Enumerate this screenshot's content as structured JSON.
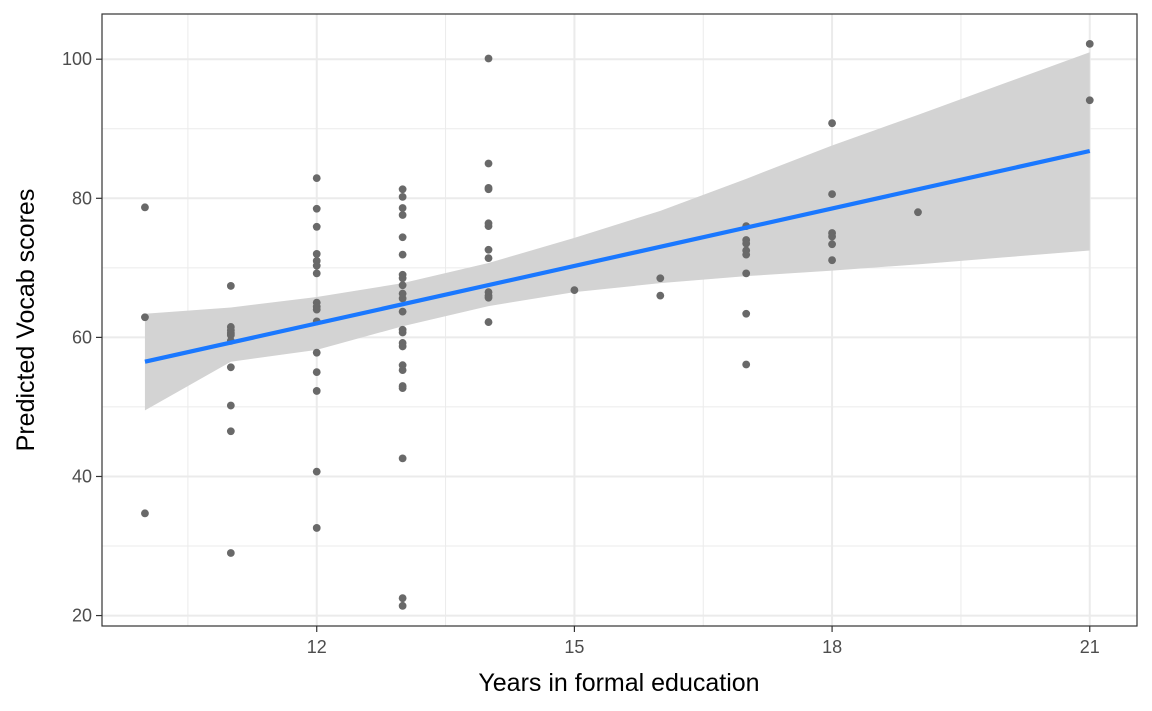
{
  "chart_data": {
    "type": "scatter",
    "title": "",
    "xlabel": "Years in formal education",
    "ylabel": "Predicted Vocab scores",
    "xlim": [
      9.5,
      21.55
    ],
    "ylim": [
      18.5,
      106.5
    ],
    "x_ticks": [
      12,
      15,
      18,
      21
    ],
    "x_tick_labels": [
      "12",
      "15",
      "18",
      "21"
    ],
    "x_minor_ticks": [
      10.5,
      13.5,
      16.5,
      19.5
    ],
    "y_ticks": [
      20,
      40,
      60,
      80,
      100
    ],
    "y_tick_labels": [
      "20",
      "40",
      "60",
      "80",
      "100"
    ],
    "y_minor_ticks": [
      30,
      50,
      70,
      90
    ],
    "grid": true,
    "legend": "none",
    "colors": {
      "points": "#696969",
      "fit_line": "#1a78ff",
      "confidence_band": "#d3d3d3",
      "grid": "#ebebeb",
      "panel_border": "#333333"
    },
    "series": [
      {
        "type": "scatter",
        "points": [
          [
            10,
            78.7
          ],
          [
            10,
            62.9
          ],
          [
            10,
            34.7
          ],
          [
            11,
            67.4
          ],
          [
            11,
            61.5
          ],
          [
            11,
            61.0
          ],
          [
            11,
            60.6
          ],
          [
            11,
            60.3
          ],
          [
            11,
            59.5
          ],
          [
            11,
            55.7
          ],
          [
            11,
            50.2
          ],
          [
            11,
            46.5
          ],
          [
            11,
            29.0
          ],
          [
            12,
            82.9
          ],
          [
            12,
            78.5
          ],
          [
            12,
            75.9
          ],
          [
            12,
            72.0
          ],
          [
            12,
            71.0
          ],
          [
            12,
            70.3
          ],
          [
            12,
            69.2
          ],
          [
            12,
            65.0
          ],
          [
            12,
            64.4
          ],
          [
            12,
            64.0
          ],
          [
            12,
            62.3
          ],
          [
            12,
            57.8
          ],
          [
            12,
            55.0
          ],
          [
            12,
            52.3
          ],
          [
            12,
            40.7
          ],
          [
            12,
            32.6
          ],
          [
            13,
            81.3
          ],
          [
            13,
            80.2
          ],
          [
            13,
            78.6
          ],
          [
            13,
            77.6
          ],
          [
            13,
            74.4
          ],
          [
            13,
            71.9
          ],
          [
            13,
            69.0
          ],
          [
            13,
            68.5
          ],
          [
            13,
            67.5
          ],
          [
            13,
            66.3
          ],
          [
            13,
            65.6
          ],
          [
            13,
            63.7
          ],
          [
            13,
            61.1
          ],
          [
            13,
            60.7
          ],
          [
            13,
            59.2
          ],
          [
            13,
            58.7
          ],
          [
            13,
            56.0
          ],
          [
            13,
            55.3
          ],
          [
            13,
            53.0
          ],
          [
            13,
            52.7
          ],
          [
            13,
            42.6
          ],
          [
            13,
            22.5
          ],
          [
            13,
            21.4
          ],
          [
            14,
            100.1
          ],
          [
            14,
            85.0
          ],
          [
            14,
            81.5
          ],
          [
            14,
            81.3
          ],
          [
            14,
            76.4
          ],
          [
            14,
            76.0
          ],
          [
            14,
            72.6
          ],
          [
            14,
            71.4
          ],
          [
            14,
            66.5
          ],
          [
            14,
            66.0
          ],
          [
            14,
            65.7
          ],
          [
            14,
            62.2
          ],
          [
            15,
            66.8
          ],
          [
            16,
            68.5
          ],
          [
            16,
            66.0
          ],
          [
            17,
            76.0
          ],
          [
            17,
            74.0
          ],
          [
            17,
            73.5
          ],
          [
            17,
            72.5
          ],
          [
            17,
            71.9
          ],
          [
            17,
            69.2
          ],
          [
            17,
            63.4
          ],
          [
            17,
            56.1
          ],
          [
            18,
            90.8
          ],
          [
            18,
            80.6
          ],
          [
            18,
            75.0
          ],
          [
            18,
            74.5
          ],
          [
            18,
            73.4
          ],
          [
            18,
            71.1
          ],
          [
            19,
            78.0
          ],
          [
            21,
            102.2
          ],
          [
            21,
            94.1
          ]
        ]
      },
      {
        "type": "line",
        "name": "",
        "x": [
          10,
          21
        ],
        "y": [
          56.5,
          86.8
        ]
      },
      {
        "type": "area",
        "name": "",
        "x": [
          10,
          11,
          12,
          13,
          14,
          15,
          16,
          17,
          18,
          19,
          20,
          21
        ],
        "lower": [
          49.5,
          56.5,
          58.2,
          61.6,
          64.5,
          66.5,
          67.8,
          68.8,
          69.6,
          70.5,
          71.5,
          72.5
        ],
        "upper": [
          63.4,
          64.3,
          65.8,
          67.8,
          70.7,
          74.3,
          78.2,
          82.8,
          87.6,
          92.0,
          96.5,
          101.0
        ]
      }
    ]
  }
}
